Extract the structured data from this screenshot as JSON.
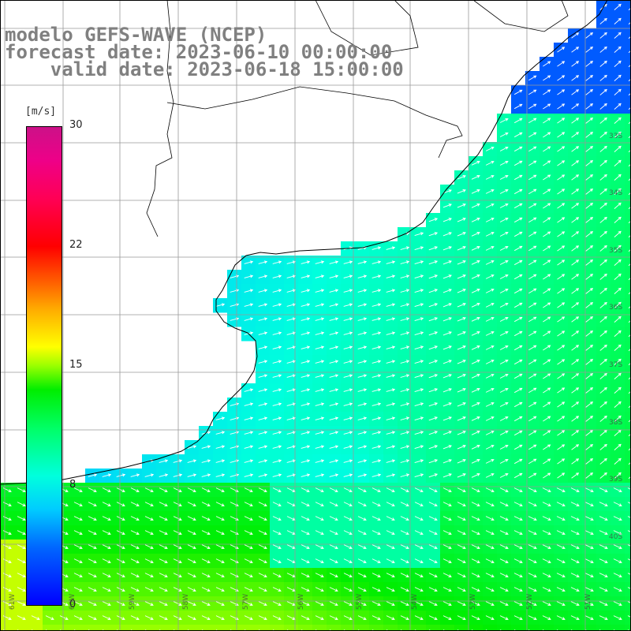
{
  "title": {
    "line1": "modelo GEFS-WAVE (NCEP)",
    "line2": "forecast date: 2023-06-10 00:00:00",
    "line3": "    valid date: 2023-06-18 15:00:00"
  },
  "legend": {
    "unit": "[m/s]",
    "ticks": [
      "30",
      "22",
      "15",
      "8",
      "0"
    ]
  },
  "map_grid": {
    "lat_labels": [
      "33S",
      "34S",
      "35S",
      "36S",
      "37S",
      "38S",
      "39S",
      "40S"
    ],
    "lon_labels": [
      "61W",
      "60W",
      "59W",
      "58W",
      "57W",
      "56W",
      "55W",
      "54W",
      "53W",
      "52W",
      "51W"
    ]
  },
  "colors": {
    "land": "#ffffff",
    "coastline": "#000000",
    "grid": "#999999",
    "arrows": "#ffffff",
    "title_text": "#808080"
  },
  "field": {
    "variable": "wind speed",
    "range_ms": [
      0,
      30
    ]
  }
}
